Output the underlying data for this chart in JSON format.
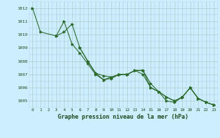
{
  "title": "Graphe pression niveau de la mer (hPa)",
  "bg_color": "#cceeff",
  "grid_color": "#aacccc",
  "line_color": "#2d6a2d",
  "xlim": [
    -0.5,
    23.5
  ],
  "ylim": [
    1004.5,
    1012.5
  ],
  "yticks": [
    1005,
    1006,
    1007,
    1008,
    1009,
    1010,
    1011,
    1012
  ],
  "xticks": [
    0,
    1,
    2,
    3,
    4,
    5,
    6,
    7,
    8,
    9,
    10,
    11,
    12,
    13,
    14,
    15,
    16,
    17,
    18,
    19,
    20,
    21,
    22,
    23
  ],
  "series": [
    {
      "x": [
        0,
        1,
        3,
        4,
        5,
        6,
        7,
        8,
        9,
        10,
        11,
        12,
        13,
        14,
        15,
        16,
        17,
        18,
        19,
        20,
        21,
        22,
        23
      ],
      "y": [
        1012.0,
        1010.2,
        1009.9,
        1010.2,
        1010.8,
        1009.0,
        1008.0,
        1007.1,
        1006.9,
        1006.8,
        1007.0,
        1007.0,
        1007.3,
        1007.3,
        1006.0,
        1005.7,
        1005.3,
        1005.0,
        1005.3,
        1006.0,
        1005.2,
        1004.9,
        1004.7
      ]
    },
    {
      "x": [
        3,
        4,
        5,
        6,
        7,
        8,
        9,
        10,
        11,
        12,
        13,
        14,
        15,
        16,
        17,
        18,
        19,
        20,
        21,
        22,
        23
      ],
      "y": [
        1009.9,
        1011.0,
        1009.3,
        1008.6,
        1007.8,
        1007.0,
        1006.6,
        1006.8,
        1007.0,
        1007.0,
        1007.3,
        1007.0,
        1006.0,
        1005.7,
        1005.0,
        1004.9,
        1005.3,
        1006.0,
        1005.2,
        1004.9,
        1004.7
      ]
    },
    {
      "x": [
        6,
        7,
        8,
        9,
        10,
        11,
        12,
        13,
        14,
        15,
        16,
        17,
        18,
        19,
        20,
        21,
        22,
        23
      ],
      "y": [
        1009.0,
        1008.0,
        1007.1,
        1006.6,
        1006.7,
        1007.0,
        1007.0,
        1007.3,
        1007.3,
        1006.3,
        1005.7,
        1005.3,
        1005.0,
        1005.3,
        1006.0,
        1005.2,
        1004.9,
        1004.7
      ]
    }
  ]
}
